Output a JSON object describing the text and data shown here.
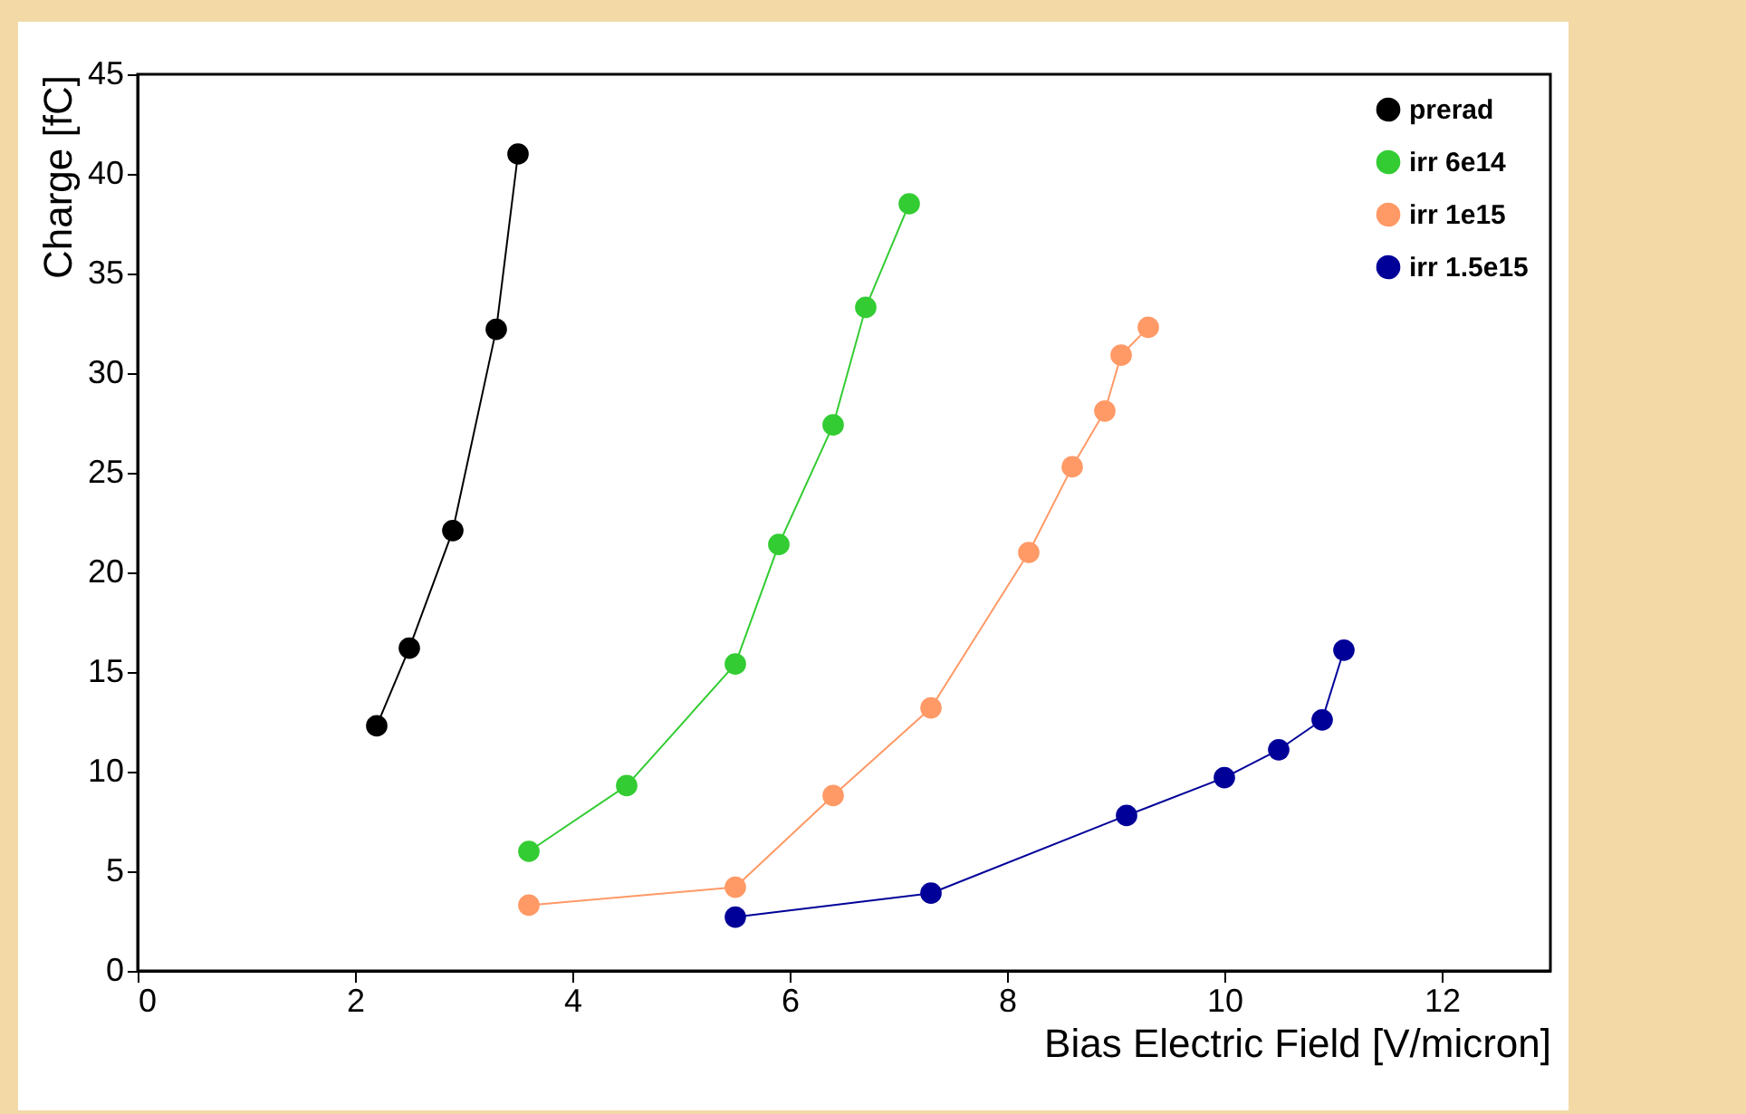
{
  "chart_data": {
    "type": "line",
    "xlabel": "Bias Electric Field [V/micron]",
    "ylabel": "Charge [fC]",
    "xlim": [
      0,
      13
    ],
    "ylim": [
      0,
      45
    ],
    "xticks": [
      0,
      2,
      4,
      6,
      8,
      10,
      12
    ],
    "yticks": [
      0,
      5,
      10,
      15,
      20,
      25,
      30,
      35,
      40,
      45
    ],
    "grid": false,
    "legend": "top right",
    "marker": "circle",
    "line_style": "solid",
    "series": [
      {
        "name": "prerad",
        "color": "#000000",
        "x": [
          2.2,
          2.5,
          2.9,
          3.3,
          3.5
        ],
        "values": [
          12.3,
          16.2,
          22.1,
          32.2,
          41
        ]
      },
      {
        "name": "irr 6e14",
        "color": "#33cc33",
        "x": [
          3.6,
          4.5,
          5.5,
          5.9,
          6.4,
          6.7,
          7.1
        ],
        "values": [
          6,
          9.3,
          15.4,
          21.4,
          27.4,
          33.3,
          38.5
        ]
      },
      {
        "name": "irr 1e15",
        "color": "#ff9966",
        "x": [
          3.6,
          5.5,
          6.4,
          7.3,
          8.2,
          8.6,
          8.9,
          9.05,
          9.3
        ],
        "values": [
          3.3,
          4.2,
          8.8,
          13.2,
          21,
          25.3,
          28.1,
          30.9,
          32.3
        ]
      },
      {
        "name": "irr 1.5e15",
        "color": "#000099",
        "x": [
          5.5,
          7.3,
          9.1,
          10,
          10.5,
          10.9,
          11.1
        ],
        "values": [
          2.7,
          3.9,
          7.8,
          9.7,
          11.1,
          12.6,
          16.1
        ]
      }
    ]
  }
}
